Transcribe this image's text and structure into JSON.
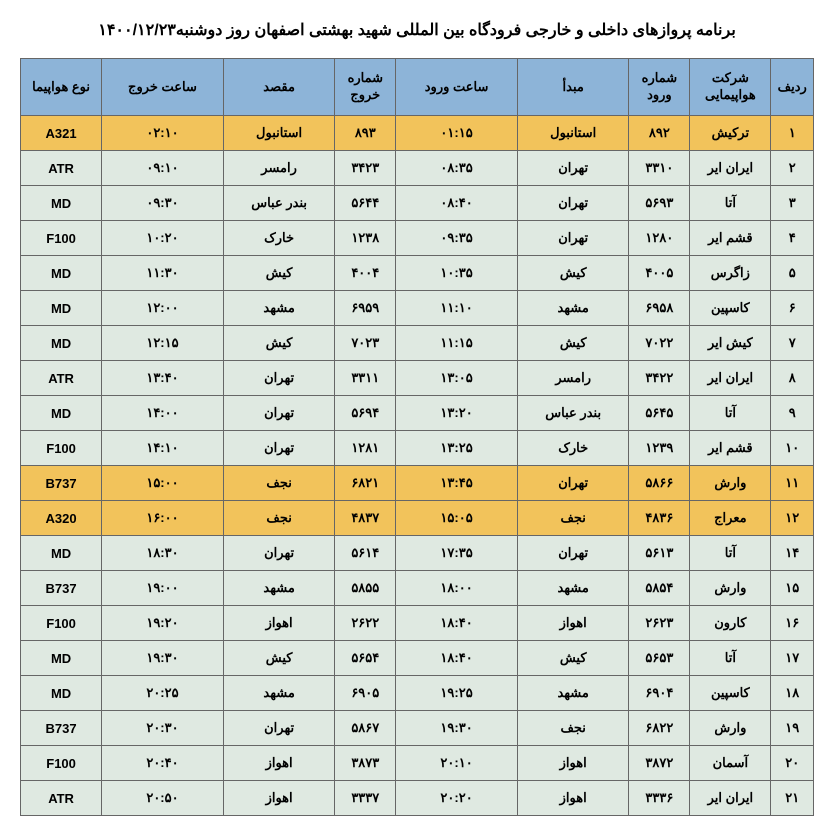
{
  "title": "برنامه پروازهای داخلی و خارجی فرودگاه بین المللی شهید بهشتی اصفهان روز دوشنبه۱۴۰۰/۱۲/۲۳",
  "headers": {
    "row": "ردیف",
    "airline": "شرکت هواپیمایی",
    "arr_no": "شماره ورود",
    "origin": "مبدأ",
    "arr_time": "ساعت ورود",
    "dep_no": "شماره خروج",
    "dest": "مقصد",
    "dep_time": "ساعت خروج",
    "aircraft": "نوع هواپیما"
  },
  "colors": {
    "header_bg": "#8db4d8",
    "row_bg": "#dfe9e1",
    "highlight_bg": "#f2c35b",
    "border": "#666666",
    "text": "#000000"
  },
  "rows": [
    {
      "n": "۱",
      "airline": "ترکیش",
      "arr_no": "۸۹۲",
      "origin": "استانبول",
      "arr_time": "۰۱:۱۵",
      "dep_no": "۸۹۳",
      "dest": "استانبول",
      "dep_time": "۰۲:۱۰",
      "aircraft": "A321",
      "hl": true
    },
    {
      "n": "۲",
      "airline": "ایران ایر",
      "arr_no": "۳۳۱۰",
      "origin": "تهران",
      "arr_time": "۰۸:۳۵",
      "dep_no": "۳۴۲۳",
      "dest": "رامسر",
      "dep_time": "۰۹:۱۰",
      "aircraft": "ATR",
      "hl": false
    },
    {
      "n": "۳",
      "airline": "آتا",
      "arr_no": "۵۶۹۳",
      "origin": "تهران",
      "arr_time": "۰۸:۴۰",
      "dep_no": "۵۶۴۴",
      "dest": "بندر عباس",
      "dep_time": "۰۹:۳۰",
      "aircraft": "MD",
      "hl": false
    },
    {
      "n": "۴",
      "airline": "قشم ایر",
      "arr_no": "۱۲۸۰",
      "origin": "تهران",
      "arr_time": "۰۹:۳۵",
      "dep_no": "۱۲۳۸",
      "dest": "خارک",
      "dep_time": "۱۰:۲۰",
      "aircraft": "F100",
      "hl": false
    },
    {
      "n": "۵",
      "airline": "زاگرس",
      "arr_no": "۴۰۰۵",
      "origin": "کیش",
      "arr_time": "۱۰:۳۵",
      "dep_no": "۴۰۰۴",
      "dest": "کیش",
      "dep_time": "۱۱:۳۰",
      "aircraft": "MD",
      "hl": false
    },
    {
      "n": "۶",
      "airline": "کاسپین",
      "arr_no": "۶۹۵۸",
      "origin": "مشهد",
      "arr_time": "۱۱:۱۰",
      "dep_no": "۶۹۵۹",
      "dest": "مشهد",
      "dep_time": "۱۲:۰۰",
      "aircraft": "MD",
      "hl": false
    },
    {
      "n": "۷",
      "airline": "کیش ایر",
      "arr_no": "۷۰۲۲",
      "origin": "کیش",
      "arr_time": "۱۱:۱۵",
      "dep_no": "۷۰۲۳",
      "dest": "کیش",
      "dep_time": "۱۲:۱۵",
      "aircraft": "MD",
      "hl": false
    },
    {
      "n": "۸",
      "airline": "ایران ایر",
      "arr_no": "۳۴۲۲",
      "origin": "رامسر",
      "arr_time": "۱۳:۰۵",
      "dep_no": "۳۳۱۱",
      "dest": "تهران",
      "dep_time": "۱۳:۴۰",
      "aircraft": "ATR",
      "hl": false
    },
    {
      "n": "۹",
      "airline": "آتا",
      "arr_no": "۵۶۴۵",
      "origin": "بندر عباس",
      "arr_time": "۱۳:۲۰",
      "dep_no": "۵۶۹۴",
      "dest": "تهران",
      "dep_time": "۱۴:۰۰",
      "aircraft": "MD",
      "hl": false
    },
    {
      "n": "۱۰",
      "airline": "قشم ایر",
      "arr_no": "۱۲۳۹",
      "origin": "خارک",
      "arr_time": "۱۳:۲۵",
      "dep_no": "۱۲۸۱",
      "dest": "تهران",
      "dep_time": "۱۴:۱۰",
      "aircraft": "F100",
      "hl": false
    },
    {
      "n": "۱۱",
      "airline": "وارش",
      "arr_no": "۵۸۶۶",
      "origin": "تهران",
      "arr_time": "۱۳:۴۵",
      "dep_no": "۶۸۲۱",
      "dest": "نجف",
      "dep_time": "۱۵:۰۰",
      "aircraft": "B737",
      "hl": true
    },
    {
      "n": "۱۲",
      "airline": "معراج",
      "arr_no": "۴۸۳۶",
      "origin": "نجف",
      "arr_time": "۱۵:۰۵",
      "dep_no": "۴۸۳۷",
      "dest": "نجف",
      "dep_time": "۱۶:۰۰",
      "aircraft": "A320",
      "hl": true
    },
    {
      "n": "۱۴",
      "airline": "آتا",
      "arr_no": "۵۶۱۳",
      "origin": "تهران",
      "arr_time": "۱۷:۳۵",
      "dep_no": "۵۶۱۴",
      "dest": "تهران",
      "dep_time": "۱۸:۳۰",
      "aircraft": "MD",
      "hl": false
    },
    {
      "n": "۱۵",
      "airline": "وارش",
      "arr_no": "۵۸۵۴",
      "origin": "مشهد",
      "arr_time": "۱۸:۰۰",
      "dep_no": "۵۸۵۵",
      "dest": "مشهد",
      "dep_time": "۱۹:۰۰",
      "aircraft": "B737",
      "hl": false
    },
    {
      "n": "۱۶",
      "airline": "کارون",
      "arr_no": "۲۶۲۳",
      "origin": "اهواز",
      "arr_time": "۱۸:۴۰",
      "dep_no": "۲۶۲۲",
      "dest": "اهواز",
      "dep_time": "۱۹:۲۰",
      "aircraft": "F100",
      "hl": false
    },
    {
      "n": "۱۷",
      "airline": "آتا",
      "arr_no": "۵۶۵۳",
      "origin": "کیش",
      "arr_time": "۱۸:۴۰",
      "dep_no": "۵۶۵۴",
      "dest": "کیش",
      "dep_time": "۱۹:۳۰",
      "aircraft": "MD",
      "hl": false
    },
    {
      "n": "۱۸",
      "airline": "کاسپین",
      "arr_no": "۶۹۰۴",
      "origin": "مشهد",
      "arr_time": "۱۹:۲۵",
      "dep_no": "۶۹۰۵",
      "dest": "مشهد",
      "dep_time": "۲۰:۲۵",
      "aircraft": "MD",
      "hl": false
    },
    {
      "n": "۱۹",
      "airline": "وارش",
      "arr_no": "۶۸۲۲",
      "origin": "نجف",
      "arr_time": "۱۹:۳۰",
      "dep_no": "۵۸۶۷",
      "dest": "تهران",
      "dep_time": "۲۰:۳۰",
      "aircraft": "B737",
      "hl": false
    },
    {
      "n": "۲۰",
      "airline": "آسمان",
      "arr_no": "۳۸۷۲",
      "origin": "اهواز",
      "arr_time": "۲۰:۱۰",
      "dep_no": "۳۸۷۳",
      "dest": "اهواز",
      "dep_time": "۲۰:۴۰",
      "aircraft": "F100",
      "hl": false
    },
    {
      "n": "۲۱",
      "airline": "ایران ایر",
      "arr_no": "۳۳۳۶",
      "origin": "اهواز",
      "arr_time": "۲۰:۲۰",
      "dep_no": "۳۳۳۷",
      "dest": "اهواز",
      "dep_time": "۲۰:۵۰",
      "aircraft": "ATR",
      "hl": false
    }
  ]
}
